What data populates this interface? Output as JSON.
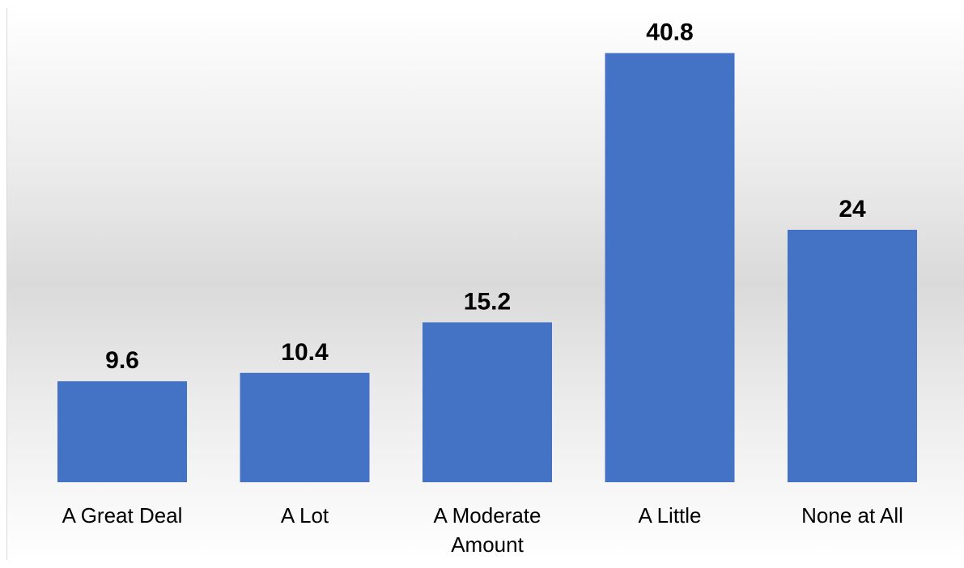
{
  "chart_data": {
    "type": "bar",
    "categories": [
      "A Great Deal",
      "A Lot",
      "A Moderate Amount",
      "A Little",
      "None at All"
    ],
    "category_lines": [
      [
        "A Great Deal"
      ],
      [
        "A Lot"
      ],
      [
        "A Moderate",
        "Amount"
      ],
      [
        "A Little"
      ],
      [
        "None at All"
      ]
    ],
    "values": [
      9.6,
      10.4,
      15.2,
      40.8,
      24
    ],
    "value_labels": [
      "9.6",
      "10.4",
      "15.2",
      "40.8",
      "24"
    ],
    "title": "",
    "xlabel": "",
    "ylabel": "",
    "ylim": [
      0,
      42
    ],
    "grid": false,
    "legend": "none",
    "bar_color": "#4472C4"
  }
}
